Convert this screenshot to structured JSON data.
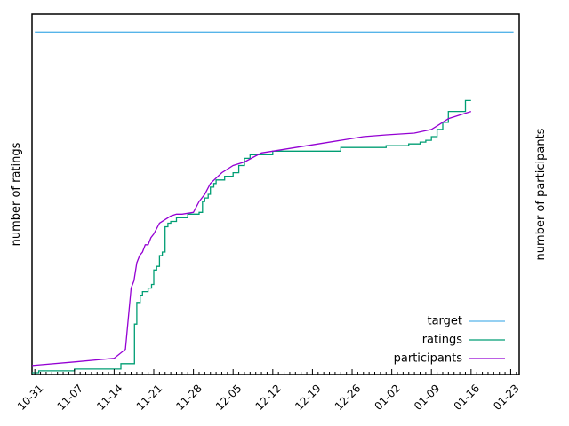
{
  "chart_data": {
    "type": "line",
    "ylabel_left": "number of ratings",
    "ylabel_right": "number of participants",
    "x_ticks": [
      "10-31",
      "11-07",
      "11-14",
      "11-21",
      "11-28",
      "12-05",
      "12-12",
      "12-19",
      "12-26",
      "01-02",
      "01-09",
      "01-16",
      "01-23"
    ],
    "x_range_days": [
      -0.5,
      85.5
    ],
    "y_range": [
      0,
      100
    ],
    "grid": false,
    "legend_position": "bottom-right",
    "series": [
      {
        "name": "target",
        "color": "#56b4e9",
        "x": [
          0,
          84.5
        ],
        "y": [
          95,
          95
        ]
      },
      {
        "name": "ratings",
        "color": "#009e73",
        "step": true,
        "x": [
          -0.5,
          0.7,
          7,
          13.5,
          15.2,
          17,
          17.6,
          18,
          18.6,
          19,
          19.7,
          20,
          20.6,
          21,
          21.5,
          22,
          22.5,
          23,
          23.5,
          24,
          25,
          27,
          29,
          29.6,
          30,
          30.6,
          31,
          31.6,
          32,
          33.5,
          35,
          36,
          37,
          38,
          40,
          42,
          50,
          54,
          62,
          66,
          67,
          68,
          69,
          70,
          71,
          72,
          73,
          74,
          75,
          76,
          77
        ],
        "y": [
          0.5,
          1,
          1.5,
          1.5,
          3,
          3,
          14,
          20,
          22,
          23,
          23,
          24,
          25,
          29,
          30,
          33,
          34,
          41,
          42,
          42.5,
          43.5,
          44.5,
          45,
          48,
          49,
          50,
          52,
          53,
          54,
          55,
          56,
          58,
          60,
          61,
          61,
          62,
          62,
          63,
          63.5,
          64,
          64,
          64.5,
          65,
          66,
          68,
          70,
          73,
          73,
          73,
          76,
          76
        ]
      },
      {
        "name": "participants",
        "color": "#9400d3",
        "x": [
          -0.5,
          7,
          14,
          16,
          17,
          17.5,
          18,
          18.5,
          19,
          19.5,
          20,
          20.5,
          21,
          22,
          23,
          24,
          25,
          26,
          28,
          29,
          30,
          31,
          33,
          35,
          37,
          40,
          42,
          48,
          50,
          54,
          58,
          62,
          67,
          70,
          71,
          72,
          73,
          77
        ],
        "y": [
          2.5,
          3.5,
          4.5,
          7,
          24,
          26,
          31,
          33,
          34,
          36,
          36,
          38,
          39,
          42,
          43,
          44,
          44.5,
          44.5,
          45,
          48,
          50,
          53,
          56,
          58,
          59,
          61.5,
          62,
          63.5,
          64,
          65,
          66,
          66.5,
          67,
          68,
          69,
          70,
          71,
          73
        ]
      }
    ]
  }
}
